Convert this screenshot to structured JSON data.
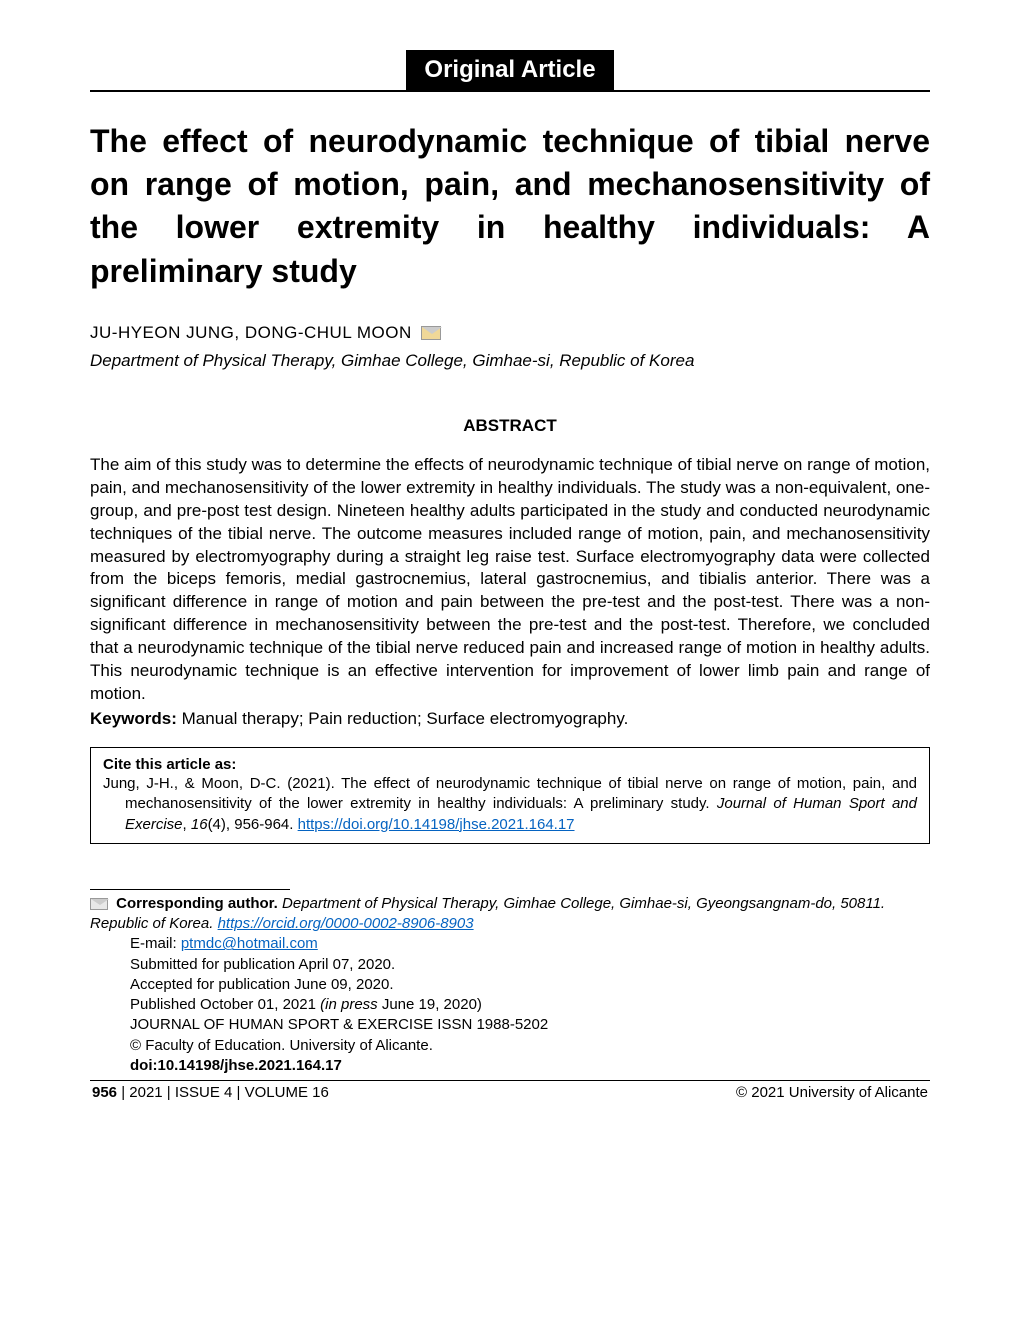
{
  "article_type": "Original Article",
  "title": "The effect of neurodynamic technique of tibial nerve on range of motion, pain, and mechanosensitivity of the lower extremity in healthy individuals: A preliminary study",
  "authors": "JU-HYEON JUNG, DONG-CHUL MOON",
  "affiliation": "Department of Physical Therapy, Gimhae College, Gimhae-si, Republic of Korea",
  "abstract": {
    "heading": "ABSTRACT",
    "text": "The aim of this study was to determine the effects of neurodynamic technique of tibial nerve on range of motion, pain, and mechanosensitivity of the lower extremity in healthy individuals. The study was a non-equivalent, one-group, and pre-post test design. Nineteen healthy adults participated in the study and conducted neurodynamic techniques of the tibial nerve. The outcome measures included range of motion, pain, and mechanosensitivity measured by electromyography during a straight leg raise test. Surface electromyography data were collected from the biceps femoris, medial gastrocnemius, lateral gastrocnemius, and tibialis anterior. There was a significant difference in range of motion and pain between the pre-test and the post-test. There was a non-significant difference in mechanosensitivity between the pre-test and the post-test. Therefore, we concluded that a neurodynamic technique of the tibial nerve reduced pain and increased range of motion in healthy adults. This neurodynamic technique is an effective intervention for improvement of lower limb pain and range of motion."
  },
  "keywords": {
    "label": "Keywords:",
    "text": " Manual therapy; Pain reduction; Surface electromyography."
  },
  "citation": {
    "label": "Cite this article as:",
    "text_start": "Jung, J-H., & Moon, D-C. (2021). The effect of neurodynamic technique of tibial nerve on range of motion, pain, and mechanosensitivity of the lower extremity in healthy individuals: A preliminary study. ",
    "journal": "Journal of Human Sport and Exercise",
    "text_mid": ", ",
    "volume": "16",
    "text_after_vol": "(4), 956-964. ",
    "doi": "https://doi.org/10.14198/jhse.2021.164.17"
  },
  "corresponding": {
    "label": "Corresponding author. ",
    "text": "Department of Physical Therapy, Gimhae College, Gimhae-si, Gyeongsangnam-do, 50811. Republic of Korea. ",
    "orcid": "https://orcid.org/0000-0002-8906-8903",
    "email_label": "E-mail: ",
    "email": "ptmdc@hotmail.com",
    "submitted": "Submitted for publication April 07, 2020.",
    "accepted": "Accepted for publication June 09, 2020.",
    "published_prefix": "Published October 01, 2021 ",
    "in_press": "(in press",
    "published_suffix": " June 19, 2020)",
    "journal_issn": "JOURNAL OF HUMAN SPORT & EXERCISE ISSN 1988-5202",
    "copyright": "© Faculty of Education. University of Alicante.",
    "doi": "doi:10.14198/jhse.2021.164.17"
  },
  "footer": {
    "page": "956",
    "issue": "    | 2021 | ISSUE 4 | VOLUME 16",
    "right": "© 2021 University of Alicante"
  }
}
